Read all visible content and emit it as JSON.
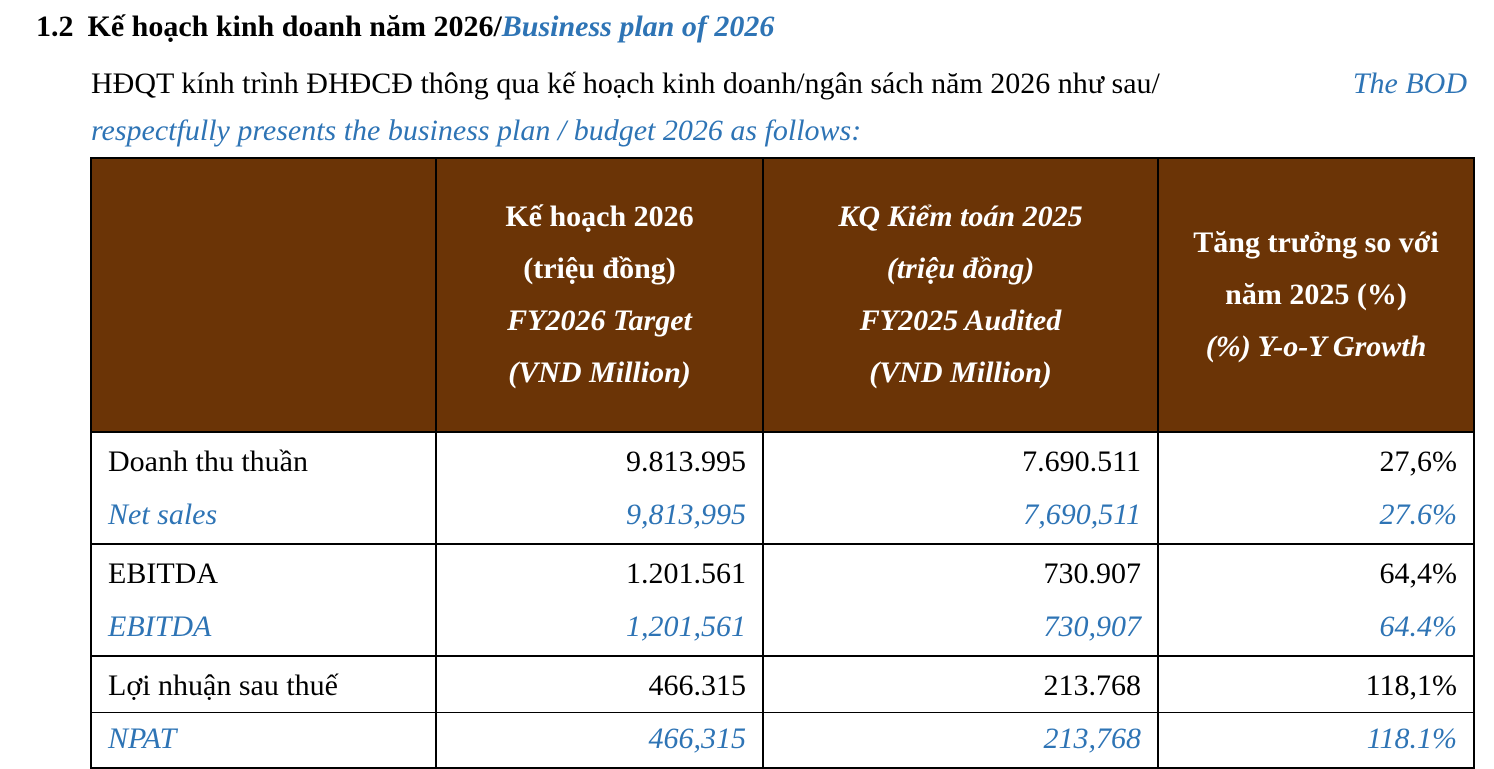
{
  "section": {
    "number": "1.2",
    "title_vn": "Kế hoạch kinh doanh năm 2026/",
    "title_en": "Business plan of 2026"
  },
  "intro": {
    "text_vn_line1_a": "HĐQT kính trình ĐHĐCĐ thông qua kế hoạch kinh doanh/ngân sách năm 2026 như sau/",
    "text_en_line1": "The BOD",
    "text_en_line2": "respectfully presents the business plan / budget 2026 as follows:"
  },
  "table": {
    "headers": [
      {
        "vn1": "",
        "vn2": "",
        "en1": "",
        "en2": ""
      },
      {
        "vn1": "Kế hoạch 2026",
        "vn2": "(triệu đồng)",
        "en1": "FY2026 Target",
        "en2": "(VND Million)"
      },
      {
        "vn1": "KQ Kiểm toán 2025",
        "vn2": "(triệu đồng)",
        "en1": "FY2025 Audited",
        "en2": "(VND Million)"
      },
      {
        "vn1": "Tăng trưởng so với",
        "vn2": "năm 2025 (%)",
        "en1": "(%) Y-o-Y Growth",
        "en2": ""
      }
    ],
    "rows": [
      {
        "label_vn": "Doanh thu thuần",
        "label_en": "Net sales",
        "target_vn": "9.813.995",
        "target_en": "9,813,995",
        "audited_vn": "7.690.511",
        "audited_en": "7,690,511",
        "growth_vn": "27,6%",
        "growth_en": "27.6%"
      },
      {
        "label_vn": "EBITDA",
        "label_en": "EBITDA",
        "target_vn": "1.201.561",
        "target_en": "1,201,561",
        "audited_vn": "730.907",
        "audited_en": "730,907",
        "growth_vn": "64,4%",
        "growth_en": "64.4%"
      },
      {
        "label_vn": "Lợi nhuận sau thuế",
        "label_en": "NPAT",
        "target_vn": "466.315",
        "target_en": "466,315",
        "audited_vn": "213.768",
        "audited_en": "213,768",
        "growth_vn": "118,1%",
        "growth_en": "118.1%"
      }
    ]
  },
  "colors": {
    "header_bg": "#6b3406",
    "english_text": "#2e74b5"
  }
}
